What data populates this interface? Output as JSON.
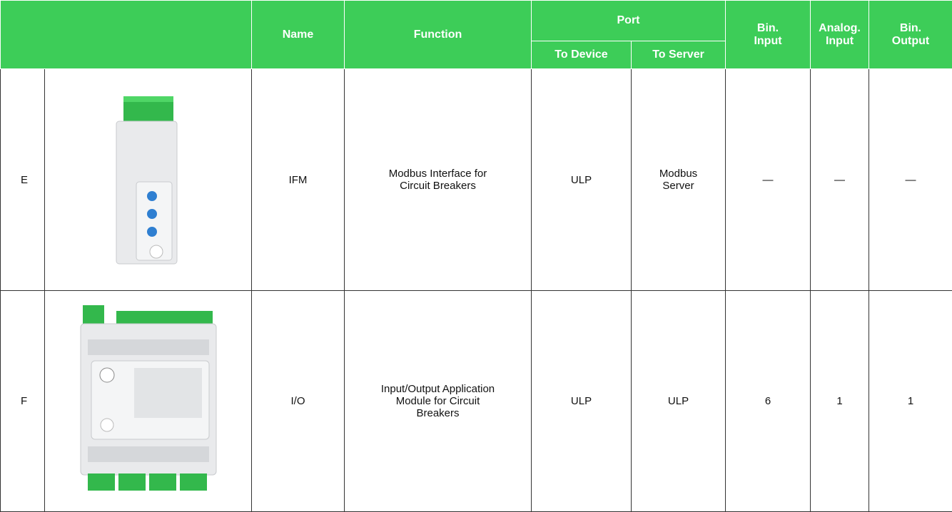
{
  "header": {
    "name": "Name",
    "function": "Function",
    "port": "Port",
    "to_device": "To Device",
    "to_server": "To Server",
    "bin_input": "Bin.\nInput",
    "analog_input": "Analog.\nInput",
    "bin_output": "Bin.\nOutput"
  },
  "rows": [
    {
      "letter": "E",
      "name": "IFM",
      "function": "Modbus Interface for Circuit Breakers",
      "to_device": "ULP",
      "to_server": "Modbus Server",
      "bin_input": "—",
      "analog_input": "—",
      "bin_output": "—"
    },
    {
      "letter": "F",
      "name": "I/O",
      "function": "Input/Output Application Module for Circuit Breakers",
      "to_device": "ULP",
      "to_server": "ULP",
      "bin_input": "6",
      "analog_input": "1",
      "bin_output": "1"
    }
  ]
}
